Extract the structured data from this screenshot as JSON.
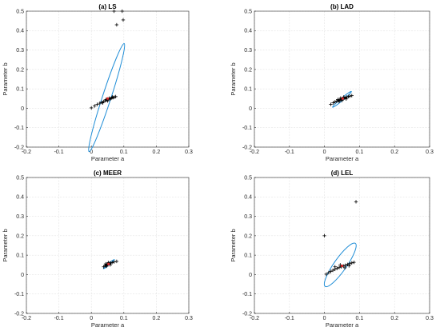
{
  "chart_data": [
    {
      "type": "scatter",
      "title": "(a) LS",
      "xlabel": "Parameter a",
      "ylabel": "Parameter b",
      "xlim": [
        -0.2,
        0.3
      ],
      "ylim": [
        -0.2,
        0.5
      ],
      "xticks": [
        "-0.2",
        "-0.1",
        "0",
        "0.1",
        "0.2",
        "0.3"
      ],
      "yticks": [
        "-0.2",
        "-0.1",
        "0",
        "0.1",
        "0.2",
        "0.3",
        "0.4",
        "0.5"
      ],
      "grid": true,
      "points": [
        [
          0.07,
          0.5
        ],
        [
          0.095,
          0.5
        ],
        [
          0.098,
          0.455
        ],
        [
          0.078,
          0.43
        ],
        [
          0.0,
          0.002
        ],
        [
          0.01,
          0.012
        ],
        [
          0.018,
          0.02
        ],
        [
          0.026,
          0.026
        ],
        [
          0.032,
          0.03
        ],
        [
          0.038,
          0.035
        ],
        [
          0.043,
          0.039
        ],
        [
          0.048,
          0.043
        ],
        [
          0.052,
          0.046
        ],
        [
          0.056,
          0.048
        ],
        [
          0.06,
          0.05
        ],
        [
          0.063,
          0.053
        ],
        [
          0.067,
          0.055
        ],
        [
          0.071,
          0.057
        ],
        [
          0.075,
          0.06
        ],
        [
          0.035,
          0.028
        ],
        [
          0.045,
          0.045
        ],
        [
          0.055,
          0.052
        ],
        [
          0.065,
          0.058
        ],
        [
          0.05,
          0.038
        ]
      ],
      "center": [
        0.05,
        0.05
      ],
      "ellipse": {
        "cx": 0.047,
        "cy": 0.055,
        "semi_major": 0.175,
        "semi_minor": 0.022,
        "angle_deg": 72,
        "color": "#1f8dd6"
      }
    },
    {
      "type": "scatter",
      "title": "(b) LAD",
      "xlabel": "Parameter a",
      "ylabel": "Parameter b",
      "xlim": [
        -0.2,
        0.3
      ],
      "ylim": [
        -0.2,
        0.5
      ],
      "xticks": [
        "-0.2",
        "-0.1",
        "0",
        "0.1",
        "0.2",
        "0.3"
      ],
      "yticks": [
        "-0.2",
        "-0.1",
        "0",
        "0.1",
        "0.2",
        "0.3",
        "0.4",
        "0.5"
      ],
      "grid": true,
      "points": [
        [
          0.018,
          0.02
        ],
        [
          0.025,
          0.028
        ],
        [
          0.03,
          0.033
        ],
        [
          0.035,
          0.036
        ],
        [
          0.04,
          0.04
        ],
        [
          0.044,
          0.043
        ],
        [
          0.048,
          0.047
        ],
        [
          0.052,
          0.05
        ],
        [
          0.056,
          0.052
        ],
        [
          0.06,
          0.055
        ],
        [
          0.064,
          0.058
        ],
        [
          0.068,
          0.06
        ],
        [
          0.072,
          0.062
        ],
        [
          0.078,
          0.065
        ],
        [
          0.038,
          0.045
        ],
        [
          0.046,
          0.052
        ],
        [
          0.055,
          0.058
        ],
        [
          0.062,
          0.048
        ],
        [
          0.05,
          0.04
        ],
        [
          0.042,
          0.035
        ]
      ],
      "center": [
        0.052,
        0.05
      ],
      "ellipse": {
        "cx": 0.05,
        "cy": 0.046,
        "semi_major": 0.035,
        "semi_minor": 0.006,
        "angle_deg": 40,
        "color": "#1f8dd6"
      }
    },
    {
      "type": "scatter",
      "title": "(c) MEER",
      "xlabel": "Parameter a",
      "ylabel": "Parameter b",
      "xlim": [
        -0.2,
        0.3
      ],
      "ylim": [
        -0.2,
        0.5
      ],
      "xticks": [
        "-0.2",
        "-0.1",
        "0",
        "0.1",
        "0.2",
        "0.3"
      ],
      "yticks": [
        "-0.2",
        "-0.1",
        "0",
        "0.1",
        "0.2",
        "0.3",
        "0.4",
        "0.5"
      ],
      "grid": true,
      "points": [
        [
          0.038,
          0.04
        ],
        [
          0.042,
          0.045
        ],
        [
          0.045,
          0.048
        ],
        [
          0.048,
          0.05
        ],
        [
          0.05,
          0.053
        ],
        [
          0.053,
          0.056
        ],
        [
          0.056,
          0.058
        ],
        [
          0.06,
          0.06
        ],
        [
          0.064,
          0.062
        ],
        [
          0.07,
          0.065
        ],
        [
          0.078,
          0.068
        ],
        [
          0.044,
          0.055
        ],
        [
          0.052,
          0.062
        ],
        [
          0.058,
          0.05
        ],
        [
          0.047,
          0.043
        ]
      ],
      "center": [
        0.053,
        0.054
      ],
      "ellipse": {
        "cx": 0.054,
        "cy": 0.054,
        "semi_major": 0.022,
        "semi_minor": 0.004,
        "angle_deg": 40,
        "color": "#1f8dd6"
      }
    },
    {
      "type": "scatter",
      "title": "(d) LEL",
      "xlabel": "Parameter a",
      "ylabel": "Parameter b",
      "xlim": [
        -0.2,
        0.3
      ],
      "ylim": [
        -0.2,
        0.5
      ],
      "xticks": [
        "-0.2",
        "-0.1",
        "0",
        "0.1",
        "0.2",
        "0.3"
      ],
      "yticks": [
        "-0.2",
        "-0.1",
        "0",
        "0.1",
        "0.2",
        "0.3",
        "0.4",
        "0.5"
      ],
      "grid": true,
      "points": [
        [
          0.0,
          0.2
        ],
        [
          0.09,
          0.375
        ],
        [
          0.005,
          0.002
        ],
        [
          0.012,
          0.01
        ],
        [
          0.018,
          0.016
        ],
        [
          0.024,
          0.022
        ],
        [
          0.03,
          0.027
        ],
        [
          0.036,
          0.032
        ],
        [
          0.042,
          0.036
        ],
        [
          0.048,
          0.04
        ],
        [
          0.054,
          0.044
        ],
        [
          0.06,
          0.048
        ],
        [
          0.066,
          0.052
        ],
        [
          0.072,
          0.056
        ],
        [
          0.078,
          0.06
        ],
        [
          0.084,
          0.063
        ],
        [
          0.03,
          0.04
        ],
        [
          0.045,
          0.05
        ],
        [
          0.058,
          0.035
        ],
        [
          0.07,
          0.045
        ]
      ],
      "center": [
        0.05,
        0.045
      ],
      "ellipse": {
        "cx": 0.045,
        "cy": 0.05,
        "semi_major": 0.075,
        "semi_minor": 0.032,
        "angle_deg": 55,
        "color": "#1f8dd6"
      }
    }
  ]
}
